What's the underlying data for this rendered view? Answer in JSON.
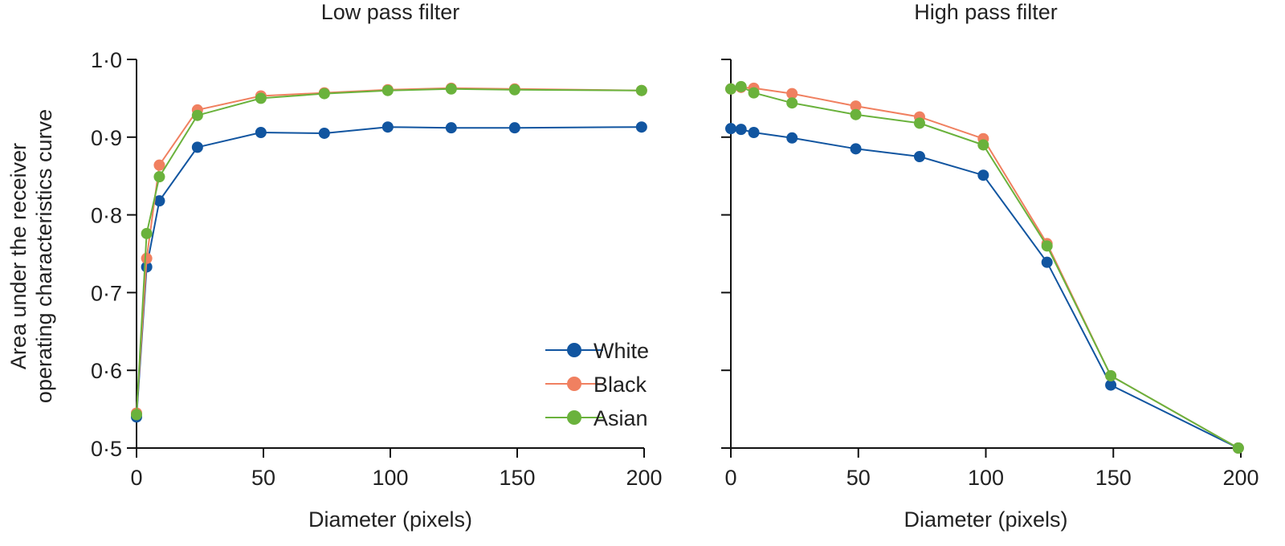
{
  "figure": {
    "shared_ylabel": "Area under the receiver operating characteristics curve",
    "shared_ylabel_lines": [
      "Area under the receiver",
      "operating characteristics curve"
    ]
  },
  "chart_data": [
    {
      "type": "line",
      "title": "Low pass filter",
      "xlabel": "Diameter (pixels)",
      "ylabel": "Area under the receiver operating characteristics curve",
      "xlim": [
        0,
        200
      ],
      "ylim": [
        0.5,
        1.0
      ],
      "xticks": [
        0,
        50,
        100,
        150,
        200
      ],
      "xtick_labels": [
        "0",
        "50",
        "100",
        "150",
        "200"
      ],
      "yticks": [
        0.5,
        0.6,
        0.7,
        0.8,
        0.9,
        1.0
      ],
      "ytick_labels": [
        "0·5",
        "0·6",
        "0·7",
        "0·8",
        "0·9",
        "1·0"
      ],
      "show_ytick_labels": true,
      "grid": false,
      "legend": "bottom-right",
      "x": [
        0,
        4,
        9,
        24,
        49,
        74,
        99,
        124,
        149,
        199
      ],
      "series": [
        {
          "name": "White",
          "color": "#1155a0",
          "values": [
            0.54,
            0.733,
            0.818,
            0.887,
            0.906,
            0.905,
            0.913,
            0.912,
            0.912,
            0.913
          ]
        },
        {
          "name": "Black",
          "color": "#f08060",
          "values": [
            0.545,
            0.744,
            0.864,
            0.935,
            0.953,
            0.957,
            0.961,
            0.963,
            0.962,
            0.96
          ]
        },
        {
          "name": "Asian",
          "color": "#6ab23c",
          "values": [
            0.543,
            0.776,
            0.849,
            0.928,
            0.95,
            0.956,
            0.96,
            0.962,
            0.961,
            0.96
          ]
        }
      ]
    },
    {
      "type": "line",
      "title": "High pass filter",
      "xlabel": "Diameter (pixels)",
      "ylabel": "",
      "xlim": [
        0,
        200
      ],
      "ylim": [
        0.5,
        1.0
      ],
      "xticks": [
        0,
        50,
        100,
        150,
        200
      ],
      "xtick_labels": [
        "0",
        "50",
        "100",
        "150",
        "200"
      ],
      "yticks": [
        0.5,
        0.6,
        0.7,
        0.8,
        0.9,
        1.0
      ],
      "ytick_labels": [],
      "show_ytick_labels": false,
      "grid": false,
      "legend": "none",
      "x": [
        0,
        4,
        9,
        24,
        49,
        74,
        99,
        124,
        149,
        199
      ],
      "series": [
        {
          "name": "White",
          "color": "#1155a0",
          "values": [
            0.911,
            0.91,
            0.906,
            0.899,
            0.885,
            0.875,
            0.851,
            0.739,
            0.581,
            0.5
          ]
        },
        {
          "name": "Black",
          "color": "#f08060",
          "values": [
            0.962,
            0.964,
            0.963,
            0.956,
            0.94,
            0.926,
            0.898,
            0.763,
            0.593,
            0.5
          ]
        },
        {
          "name": "Asian",
          "color": "#6ab23c",
          "values": [
            0.962,
            0.965,
            0.957,
            0.944,
            0.929,
            0.918,
            0.89,
            0.76,
            0.593,
            0.5
          ]
        }
      ]
    }
  ]
}
